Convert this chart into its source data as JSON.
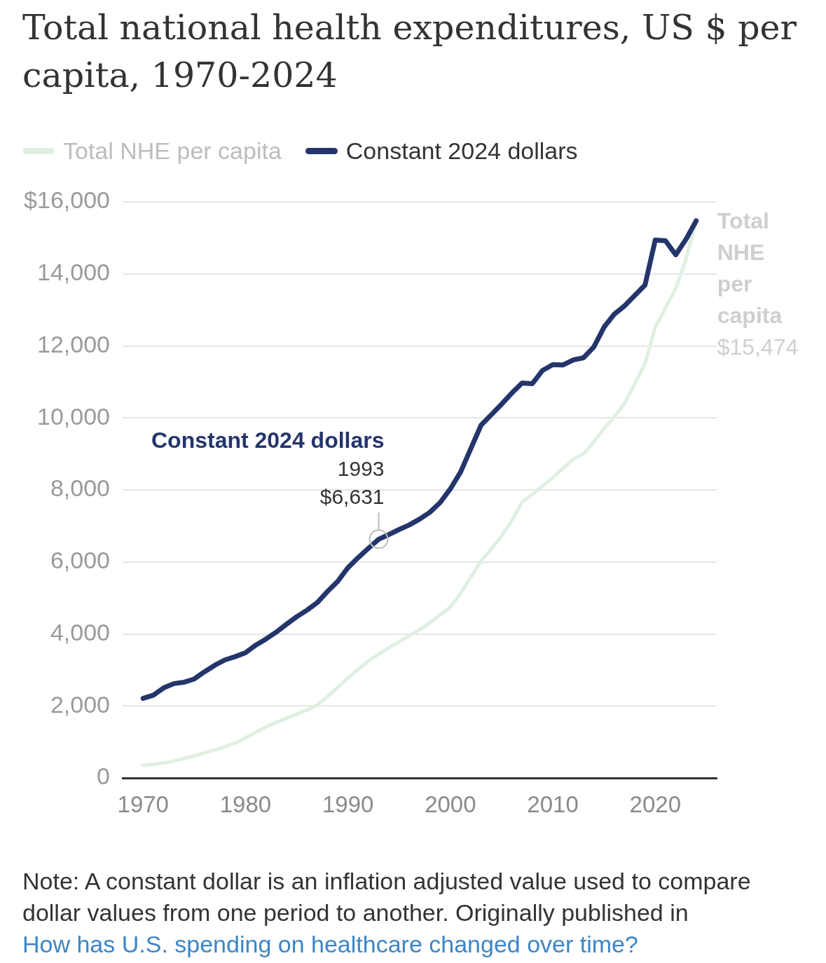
{
  "chart_data": {
    "type": "line",
    "title": "Total national health expenditures, US $ per capita, 1970-2024",
    "x": [
      1970,
      1971,
      1972,
      1973,
      1974,
      1975,
      1976,
      1977,
      1978,
      1979,
      1980,
      1981,
      1982,
      1983,
      1984,
      1985,
      1986,
      1987,
      1988,
      1989,
      1990,
      1991,
      1992,
      1993,
      1994,
      1995,
      1996,
      1997,
      1998,
      1999,
      2000,
      2001,
      2002,
      2003,
      2004,
      2005,
      2006,
      2007,
      2008,
      2009,
      2010,
      2011,
      2012,
      2013,
      2014,
      2015,
      2016,
      2017,
      2018,
      2019,
      2020,
      2021,
      2022,
      2023,
      2024
    ],
    "series": [
      {
        "name": "Total NHE per capita",
        "color": "#dff0e3",
        "values": [
          350,
          380,
          420,
          470,
          540,
          610,
          700,
          780,
          870,
          970,
          1110,
          1270,
          1420,
          1540,
          1660,
          1770,
          1890,
          2030,
          2260,
          2520,
          2780,
          3020,
          3250,
          3440,
          3620,
          3790,
          3950,
          4120,
          4310,
          4530,
          4750,
          5130,
          5580,
          6030,
          6360,
          6720,
          7140,
          7660,
          7880,
          8110,
          8340,
          8600,
          8850,
          9000,
          9330,
          9700,
          10030,
          10400,
          10950,
          11500,
          12520,
          13050,
          13600,
          14400,
          15474
        ]
      },
      {
        "name": "Constant 2024 dollars",
        "color": "#24356b",
        "values": [
          2210,
          2300,
          2500,
          2620,
          2660,
          2750,
          2950,
          3130,
          3280,
          3370,
          3480,
          3690,
          3860,
          4050,
          4270,
          4480,
          4660,
          4870,
          5180,
          5460,
          5840,
          6120,
          6380,
          6631,
          6760,
          6900,
          7030,
          7190,
          7380,
          7650,
          8030,
          8500,
          9150,
          9800,
          10090,
          10380,
          10690,
          10970,
          10950,
          11320,
          11480,
          11470,
          11610,
          11670,
          11970,
          12520,
          12880,
          13110,
          13400,
          13690,
          14940,
          14920,
          14530,
          14960,
          15474
        ]
      }
    ],
    "xlim": [
      1968,
      2026
    ],
    "xticks": [
      1970,
      1980,
      1990,
      2000,
      2010,
      2020
    ],
    "ylim": [
      0,
      16000
    ],
    "yticks": [
      {
        "value": 0,
        "label": "0"
      },
      {
        "value": 2000,
        "label": "2,000"
      },
      {
        "value": 4000,
        "label": "4,000"
      },
      {
        "value": 6000,
        "label": "6,000"
      },
      {
        "value": 8000,
        "label": "8,000"
      },
      {
        "value": 10000,
        "label": "10,000"
      },
      {
        "value": 12000,
        "label": "12,000"
      },
      {
        "value": 14000,
        "label": "14,000"
      },
      {
        "value": 16000,
        "label": "$16,000"
      }
    ],
    "grid": "y",
    "legend": "top left",
    "marker": "none",
    "annotations": [
      {
        "text": "Total NHE per capita\n$15,474",
        "x": 2024,
        "y": 15474
      },
      {
        "text": "Constant 2024 dollars\n1993\n$6,631",
        "x": 1993,
        "y": 6631
      },
      "Note: A constant dollar is an inflation adjusted value used to compare dollar values from one period to another. Originally published in",
      "How has U.S. spending on healthcare changed over time?"
    ]
  }
}
